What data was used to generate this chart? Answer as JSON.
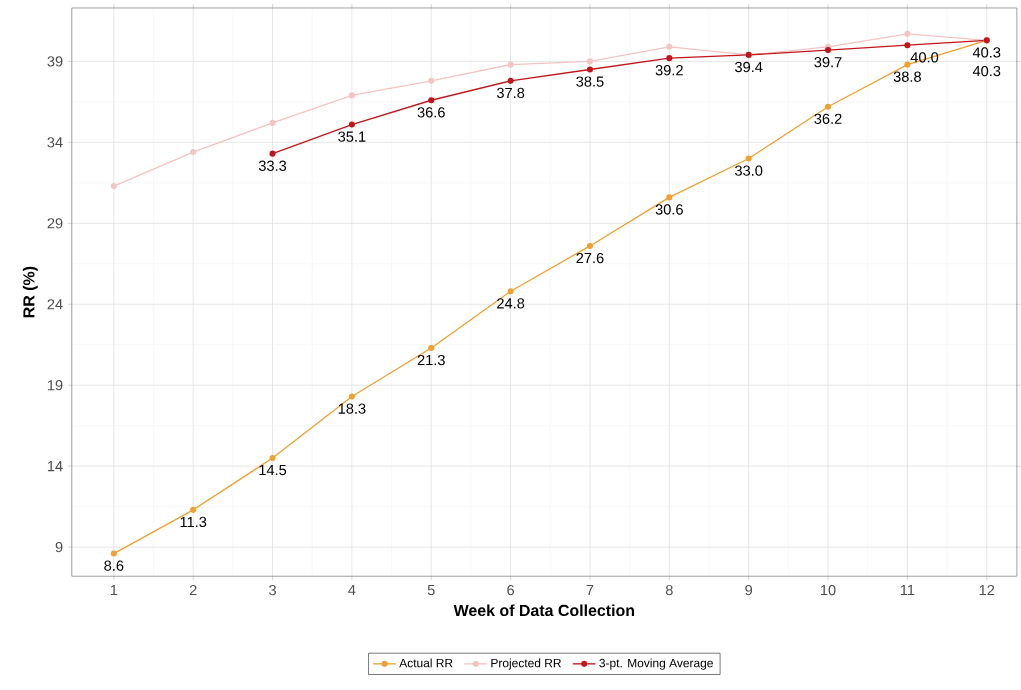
{
  "chart_data": {
    "type": "line",
    "xlabel": "Week of Data Collection",
    "ylabel": "RR (%)",
    "x": [
      1,
      2,
      3,
      4,
      5,
      6,
      7,
      8,
      9,
      10,
      11,
      12
    ],
    "xlim": [
      0.47,
      12.38
    ],
    "xticks": [
      1,
      2,
      3,
      4,
      5,
      6,
      7,
      8,
      9,
      10,
      11,
      12
    ],
    "ylim": [
      7.2,
      42.3
    ],
    "yticks": [
      9,
      14,
      19,
      24,
      29,
      34,
      39
    ],
    "grid": true,
    "legend": "bottom",
    "marker": "circle",
    "line_style": "solid",
    "series": [
      {
        "name": "Actual RR",
        "color": "#f0a030",
        "values": [
          8.6,
          11.3,
          14.5,
          18.3,
          21.3,
          24.8,
          27.6,
          30.6,
          33.0,
          36.2,
          38.8,
          40.3
        ],
        "value_labels": [
          "8.6",
          "11.3",
          "14.5",
          "18.3",
          "21.3",
          "24.8",
          "27.6",
          "30.6",
          "33.0",
          "36.2",
          "38.8",
          "40.3"
        ]
      },
      {
        "name": "Projected RR",
        "color": "#f4c4c4",
        "values": [
          31.3,
          33.4,
          35.2,
          36.9,
          37.8,
          38.8,
          39.0,
          39.9,
          39.4,
          39.9,
          40.7,
          40.3
        ]
      },
      {
        "name": "3-pt. Moving Average",
        "color": "#c0161c",
        "values": [
          null,
          null,
          33.3,
          35.1,
          36.6,
          37.8,
          38.5,
          39.2,
          39.4,
          39.7,
          40.0,
          40.3
        ],
        "value_labels": [
          null,
          null,
          "33.3",
          "35.1",
          "36.6",
          "37.8",
          "38.5",
          "39.2",
          "39.4",
          "39.7",
          "40.0",
          "40.3"
        ]
      }
    ]
  }
}
